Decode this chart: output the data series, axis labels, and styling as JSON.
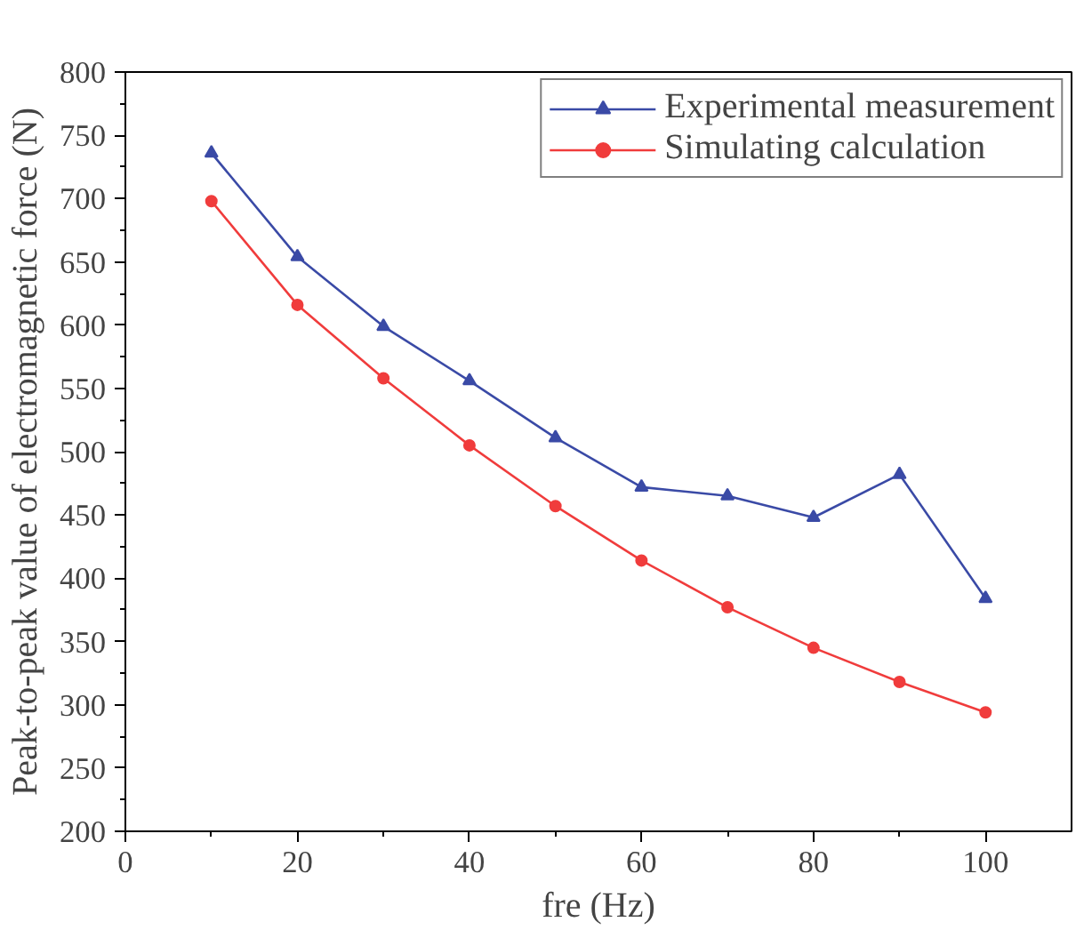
{
  "chart_data": {
    "type": "line",
    "xlabel": "fre (Hz)",
    "ylabel": "Peak-to-peak value of electromagnetic force (N)",
    "x": [
      10,
      20,
      30,
      40,
      50,
      60,
      70,
      80,
      90,
      100
    ],
    "series": [
      {
        "name": "Experimental measurement",
        "color": "#3a4aa6",
        "marker": "triangle",
        "values": [
          736,
          654,
          599,
          556,
          511,
          472,
          465,
          448,
          482,
          384
        ]
      },
      {
        "name": "Simulating calculation",
        "color": "#f03c3c",
        "marker": "circle",
        "values": [
          698,
          616,
          558,
          505,
          457,
          414,
          377,
          345,
          318,
          294
        ]
      }
    ],
    "xlim": [
      0,
      110
    ],
    "xticks": [
      0,
      20,
      40,
      60,
      80,
      100
    ],
    "ylim": [
      200,
      800
    ],
    "yticks": [
      200,
      250,
      300,
      350,
      400,
      450,
      500,
      550,
      600,
      650,
      700,
      750,
      800
    ],
    "grid": false,
    "legend": "top right",
    "line_style": "solid"
  }
}
